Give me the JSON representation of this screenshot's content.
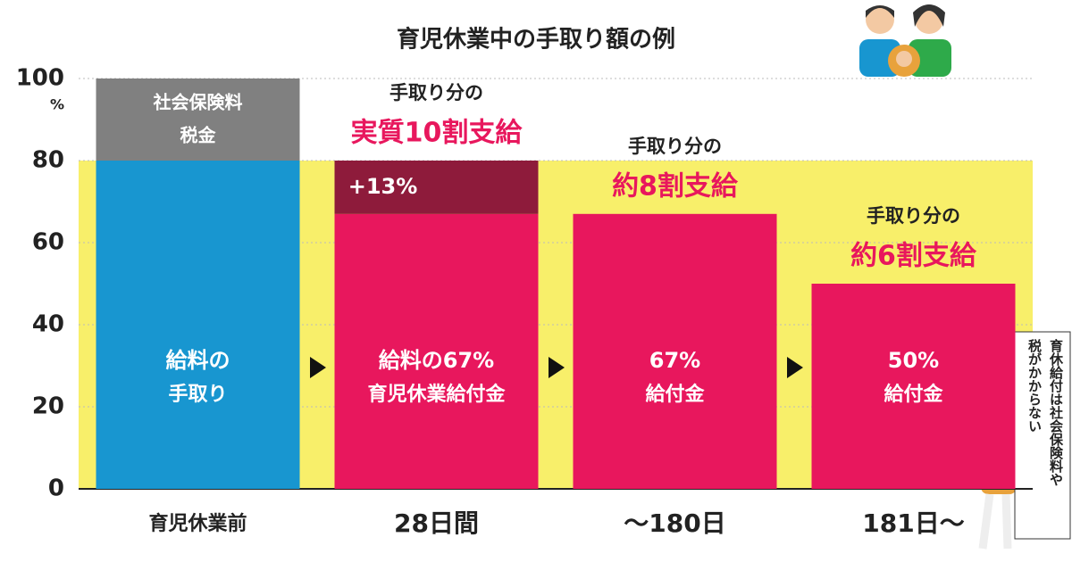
{
  "chart_data": {
    "type": "bar",
    "stacked": true,
    "title": "育児休業中の手取り額の例",
    "categories": [
      "育児休業前",
      "28日間",
      "〜180日",
      "181日〜"
    ],
    "series": [
      {
        "color": "#1896d0",
        "values": [
          80,
          null,
          null,
          null
        ]
      },
      {
        "color": "#e8175d",
        "values": [
          null,
          67,
          67,
          50
        ]
      },
      {
        "color": "#8e1b3b",
        "values": [
          null,
          13,
          null,
          null
        ],
        "value_labels": [
          null,
          "+13%",
          null,
          null
        ]
      },
      {
        "color": "#808080",
        "values": [
          20,
          null,
          null,
          null
        ]
      }
    ],
    "segment_texts": [
      [
        "給料の",
        "手取り"
      ],
      [
        "給料の67%",
        "育児休業給付金"
      ],
      [
        "67%",
        "給付金"
      ],
      [
        "50%",
        "給付金"
      ]
    ],
    "top_segment_texts": [
      [
        "社会保険料",
        "税金"
      ],
      null,
      null,
      null
    ],
    "headlines": [
      null,
      [
        "手取り分の",
        "実質10割支給"
      ],
      [
        "手取り分の",
        "約8割支給"
      ],
      [
        "手取り分の",
        "約6割支給"
      ]
    ],
    "ylim": [
      0,
      100
    ],
    "yticks": [
      0,
      20,
      40,
      60,
      80,
      100
    ],
    "y_unit": "%",
    "highlight_band": [
      0,
      80
    ],
    "highlight_color": "#f8ef6a",
    "grid": true,
    "side_note": [
      "育休給付は社会保険料や",
      "税がかからない"
    ]
  }
}
